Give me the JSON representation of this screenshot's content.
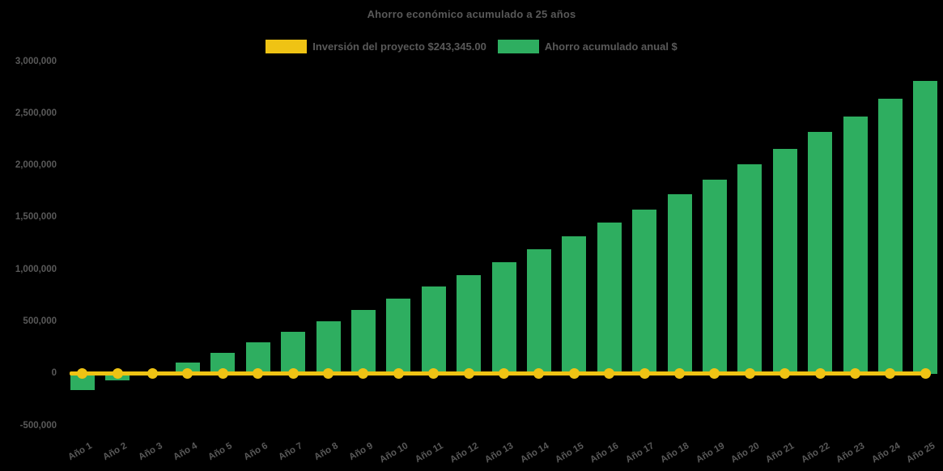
{
  "title": "Ahorro económico acumulado a 25 años",
  "colors": {
    "background": "#000000",
    "bar_green": "#2EAE60",
    "line_yellow": "#EFC314",
    "text_gray": "#595959"
  },
  "legend": {
    "items": [
      {
        "label": "Inversión del proyecto $243,345.00",
        "color": "#EFC314"
      },
      {
        "label": "Ahorro acumulado anual $",
        "color": "#2EAE60"
      }
    ]
  },
  "chart_data": {
    "type": "bar",
    "title": "Ahorro económico acumulado a 25 años",
    "xlabel": "",
    "ylabel": "",
    "grid": false,
    "legend_position": "top",
    "x_label_rotation": -30,
    "ylim": [
      -500000,
      3000000
    ],
    "ytick_step": 500000,
    "ytick_values": [
      3000000,
      2500000,
      2000000,
      1500000,
      1000000,
      500000,
      0,
      -500000
    ],
    "ytick_labels": [
      "3,000,000",
      "2,500,000",
      "2,000,000",
      "1,500,000",
      "1,000,000",
      "500,000",
      "0",
      "-500,000"
    ],
    "categories": [
      "Año 1",
      "Año 2",
      "Año 3",
      "Año 4",
      "Año 5",
      "Año 6",
      "Año 7",
      "Año 8",
      "Año 9",
      "Año 10",
      "Año 11",
      "Año 12",
      "Año 13",
      "Año 14",
      "Año 15",
      "Año 16",
      "Año 17",
      "Año 18",
      "Año 19",
      "Año 20",
      "Año 21",
      "Año 22",
      "Año 23",
      "Año 24",
      "Año 25"
    ],
    "series": [
      {
        "name": "Ahorro acumulado anual $",
        "type": "bar",
        "color": "#2EAE60",
        "values": [
          -155000,
          -65000,
          10000,
          105000,
          200000,
          300000,
          400000,
          505000,
          610000,
          720000,
          835000,
          950000,
          1075000,
          1195000,
          1320000,
          1450000,
          1580000,
          1725000,
          1865000,
          2015000,
          2160000,
          2320000,
          2475000,
          2640000,
          2810000
        ]
      },
      {
        "name": "Inversión del proyecto $243,345.00",
        "type": "line",
        "color": "#EFC314",
        "marker": "circle",
        "values": [
          0,
          0,
          0,
          0,
          0,
          0,
          0,
          0,
          0,
          0,
          0,
          0,
          0,
          0,
          0,
          0,
          0,
          0,
          0,
          0,
          0,
          0,
          0,
          0,
          0
        ]
      }
    ]
  }
}
